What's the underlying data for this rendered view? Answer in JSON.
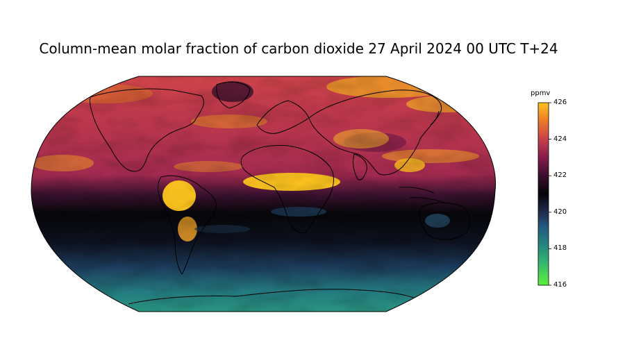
{
  "title": "Column-mean molar fraction of carbon dioxide 27 April 2024 00 UTC T+24",
  "projection": "Robinson",
  "colorbar": {
    "unit": "ppmv",
    "range": [
      416,
      426
    ],
    "ticks": [
      {
        "value": 426,
        "label": "426"
      },
      {
        "value": 424,
        "label": "424"
      },
      {
        "value": 422,
        "label": "422"
      },
      {
        "value": 420,
        "label": "420"
      },
      {
        "value": 418,
        "label": "418"
      },
      {
        "value": 416,
        "label": "416"
      }
    ],
    "colors": [
      "#5ff03c",
      "#23a27a",
      "#255a80",
      "#222e52",
      "#050508",
      "#3a0e2e",
      "#8a1c4e",
      "#c8404a",
      "#ec7a2a",
      "#ffc21e"
    ]
  },
  "colors": {
    "coastline": "#000000",
    "frame": "#000000"
  }
}
